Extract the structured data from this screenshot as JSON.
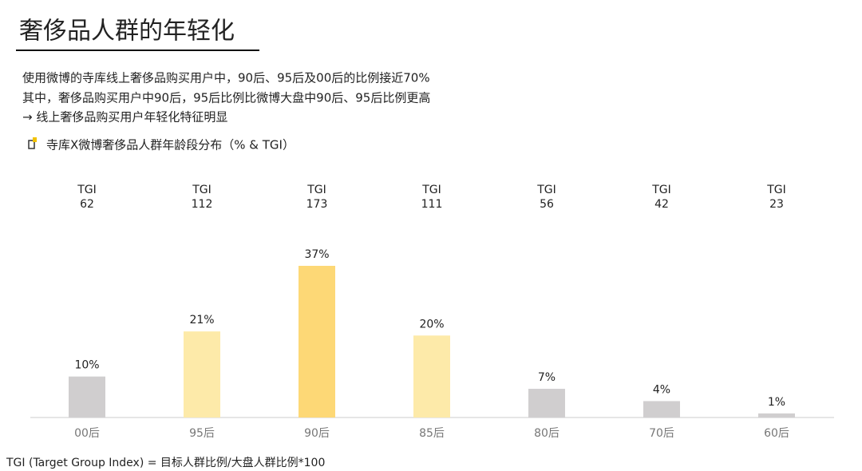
{
  "header": {
    "title": "奢侈品人群的年轻化",
    "lines": [
      "使用微博的寺库线上奢侈品购买用户中，90后、95后及00后的比例接近70%",
      "其中，奢侈品购买用户中90后，95后比例比微博大盘中90后、95后比例更高",
      "→ 线上奢侈品购买用户年轻化特征明显"
    ]
  },
  "chart_data": {
    "type": "bar",
    "title": "寺库X微博奢侈品人群年龄段分布（% & TGI）",
    "categories": [
      "00后",
      "95后",
      "90后",
      "85后",
      "80后",
      "70后",
      "60后"
    ],
    "values": [
      10,
      21,
      37,
      20,
      7,
      4,
      1
    ],
    "value_labels": [
      "10%",
      "21%",
      "37%",
      "20%",
      "7%",
      "4%",
      "1%"
    ],
    "colors": [
      "#d0cecf",
      "#fdeaa9",
      "#fdd876",
      "#fdeaa9",
      "#d0cecf",
      "#d0cecf",
      "#d0cecf"
    ],
    "tgi_label": "TGI",
    "tgi": [
      62,
      112,
      173,
      111,
      56,
      42,
      23
    ]
  },
  "footnote": "TGI (Target Group Index) = 目标人群比例/大盘人群比例*100"
}
